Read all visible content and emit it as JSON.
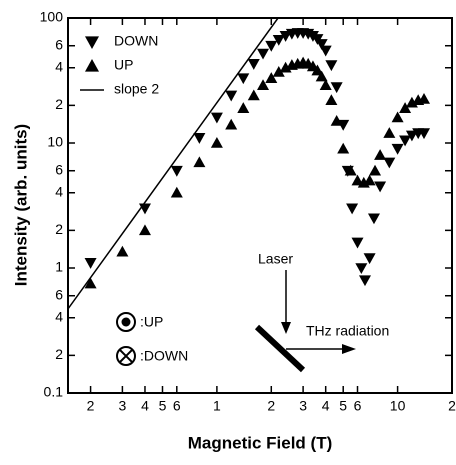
{
  "chart_data": {
    "type": "scatter",
    "xlabel": "Magnetic Field (T)",
    "ylabel": "Intensity (arb. units)",
    "xscale": "log",
    "yscale": "log",
    "xlim": [
      0.15,
      20
    ],
    "ylim": [
      0.1,
      100
    ],
    "xticks": [
      {
        "value": 0.2,
        "label": "2"
      },
      {
        "value": 0.3,
        "label": "3"
      },
      {
        "value": 0.4,
        "label": "4"
      },
      {
        "value": 0.5,
        "label": "5"
      },
      {
        "value": 0.6,
        "label": "6"
      },
      1,
      {
        "value": 2,
        "label": "2"
      },
      {
        "value": 3,
        "label": "3"
      },
      {
        "value": 4,
        "label": "4"
      },
      {
        "value": 5,
        "label": "5"
      },
      {
        "value": 6,
        "label": "6"
      },
      10,
      {
        "value": 20,
        "label": "2"
      }
    ],
    "yticks": [
      0.1,
      {
        "value": 0.2,
        "label": "2"
      },
      {
        "value": 0.4,
        "label": "4"
      },
      {
        "value": 0.6,
        "label": "6"
      },
      1,
      {
        "value": 2,
        "label": "2"
      },
      {
        "value": 4,
        "label": "4"
      },
      {
        "value": 6,
        "label": "6"
      },
      10,
      {
        "value": 20,
        "label": "2"
      },
      {
        "value": 40,
        "label": "4"
      },
      {
        "value": 60,
        "label": "6"
      },
      100
    ],
    "series": [
      {
        "name": "DOWN",
        "marker": "triangle-down",
        "color": "#000000",
        "x": [
          0.2,
          0.4,
          0.6,
          0.8,
          1.0,
          1.2,
          1.4,
          1.6,
          1.8,
          2.0,
          2.2,
          2.4,
          2.6,
          2.8,
          3.0,
          3.2,
          3.4,
          3.6,
          3.8,
          4.0,
          4.3,
          4.6,
          5.0,
          5.3,
          5.6,
          6.0,
          6.3,
          6.6,
          7.0,
          7.4,
          8,
          9,
          10,
          11,
          12,
          13,
          14
        ],
        "values": [
          1.1,
          3,
          6,
          11,
          16,
          24,
          33,
          43,
          52,
          60,
          67,
          72,
          75,
          76,
          76,
          75,
          72,
          68,
          62,
          55,
          42,
          28,
          14,
          6,
          3,
          1.6,
          1.0,
          0.8,
          1.2,
          2.5,
          4.5,
          7,
          9,
          10.5,
          11.5,
          12,
          12
        ]
      },
      {
        "name": "UP",
        "marker": "triangle-up",
        "color": "#000000",
        "x": [
          0.2,
          0.3,
          0.4,
          0.6,
          0.8,
          1.0,
          1.2,
          1.4,
          1.6,
          1.8,
          2.0,
          2.2,
          2.4,
          2.6,
          2.8,
          3.0,
          3.2,
          3.4,
          3.6,
          3.8,
          4.0,
          4.3,
          4.6,
          5.0,
          5.5,
          6.0,
          6.5,
          7.0,
          7.5,
          8,
          9,
          10,
          11,
          12,
          13,
          14
        ],
        "values": [
          0.75,
          1.35,
          2,
          4,
          7,
          10,
          14,
          19,
          24,
          29,
          33,
          37,
          40,
          42,
          43,
          44,
          43,
          41,
          38,
          34,
          29,
          22,
          15,
          9,
          6,
          5,
          4.8,
          5,
          6,
          8,
          12,
          16,
          19,
          21,
          22,
          22.5
        ]
      },
      {
        "name": "slope 2",
        "marker": "line",
        "color": "#000000",
        "x": [
          0.14,
          2.18
        ],
        "values": [
          0.41,
          100
        ]
      }
    ],
    "annotations": {
      "up": ":UP",
      "down": ":DOWN",
      "laser": "Laser",
      "thz": "THz radiation"
    }
  }
}
